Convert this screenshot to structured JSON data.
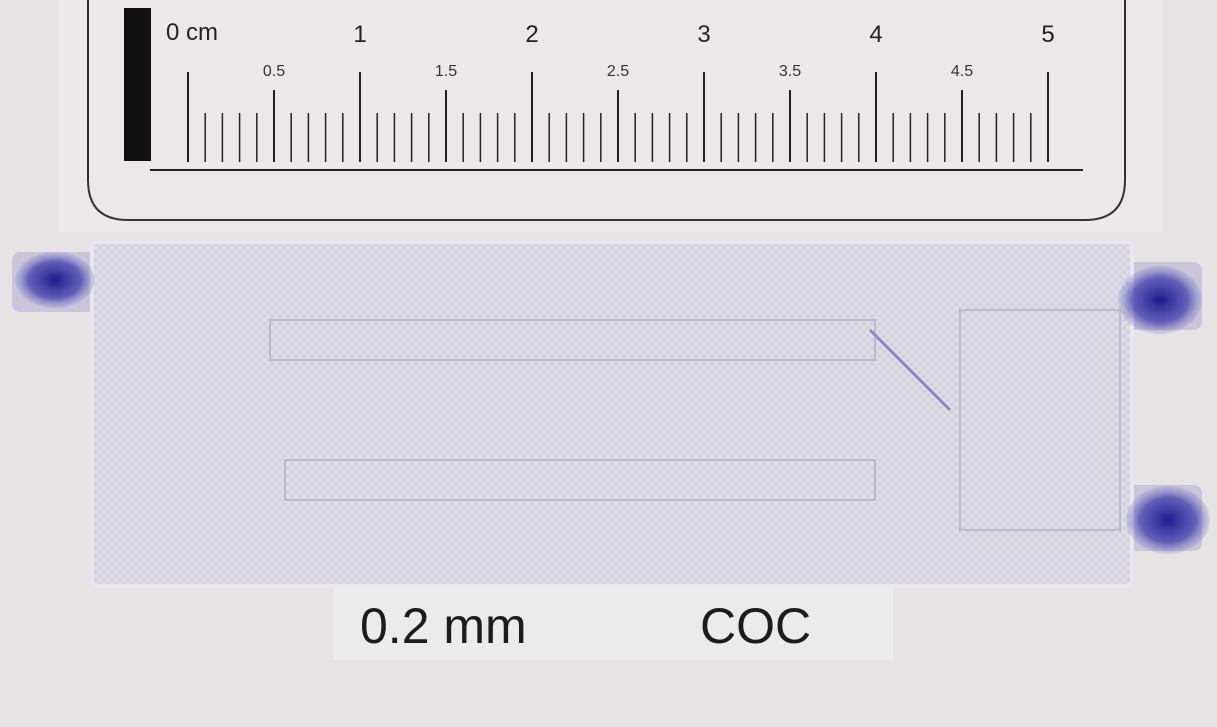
{
  "ruler": {
    "unit_label": "0 cm",
    "major_labels": [
      "1",
      "2",
      "3",
      "4",
      "5"
    ],
    "half_labels": [
      "0.5",
      "1.5",
      "2.5",
      "3.5",
      "4.5"
    ]
  },
  "label": {
    "thickness": "0.2 mm",
    "material": "COC"
  }
}
